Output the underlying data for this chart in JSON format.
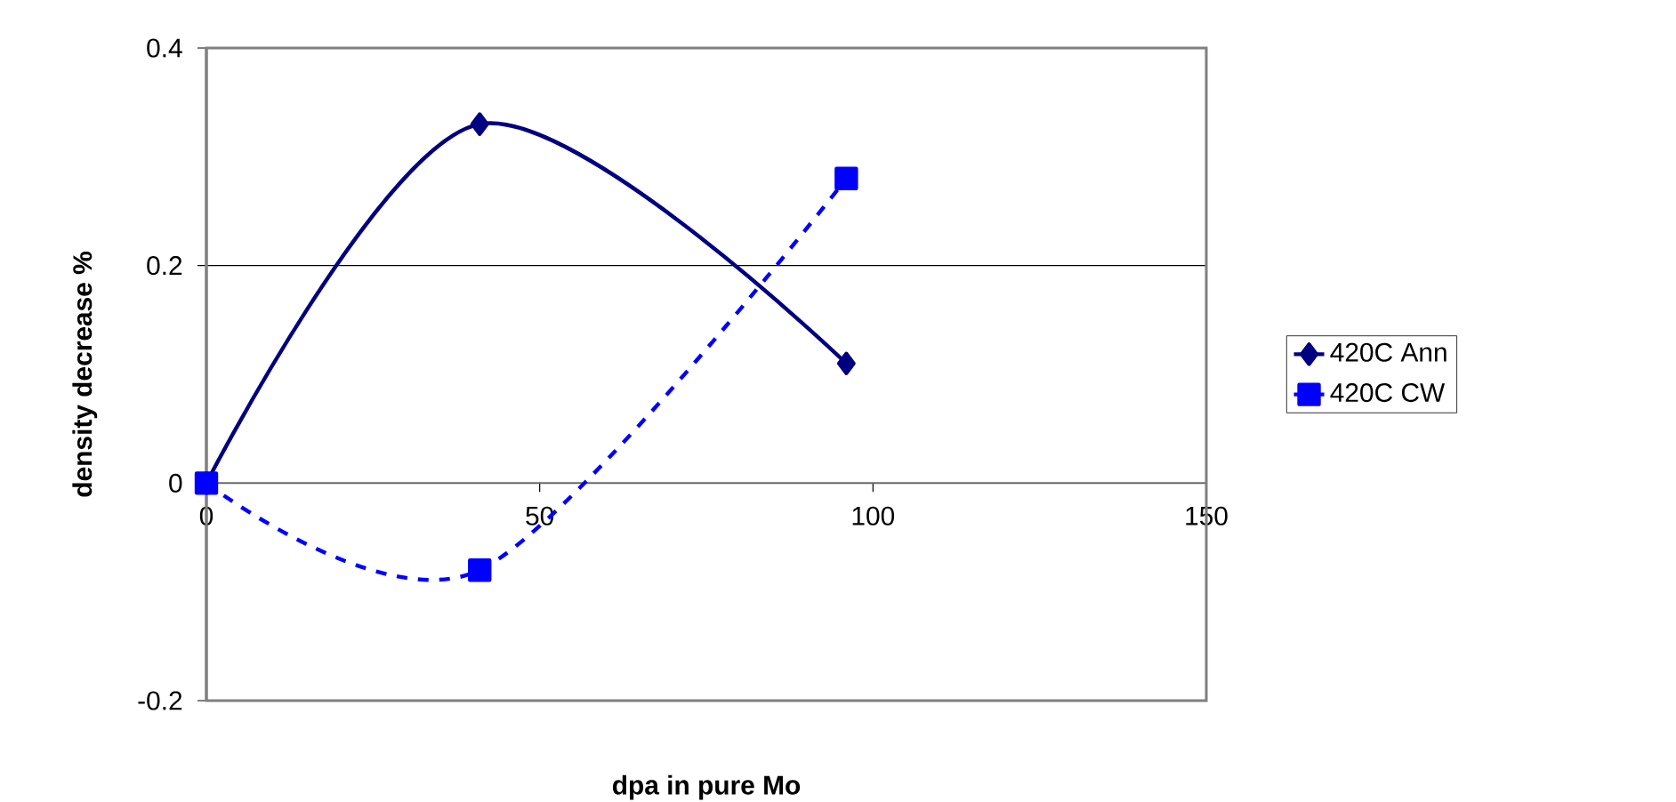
{
  "chart_data": {
    "type": "line",
    "xlabel": "dpa in pure Mo",
    "ylabel": "density decrease %",
    "x": [
      0,
      41,
      96
    ],
    "series": [
      {
        "name": "420C Ann",
        "color": "#000080",
        "values": [
          0,
          0.33,
          0.11
        ],
        "marker": "diamond",
        "line_style": "solid"
      },
      {
        "name": "420C CW",
        "color": "#0000ff",
        "values": [
          0,
          -0.08,
          0.28
        ],
        "marker": "square",
        "line_style": "dashed"
      }
    ],
    "xlim": [
      0,
      150
    ],
    "xticks": [
      0,
      50,
      100,
      150
    ],
    "ylim": [
      -0.2,
      0.4
    ],
    "yticks": [
      -0.2,
      0,
      0.2,
      0.4
    ],
    "grid": "y",
    "legend": "right"
  }
}
